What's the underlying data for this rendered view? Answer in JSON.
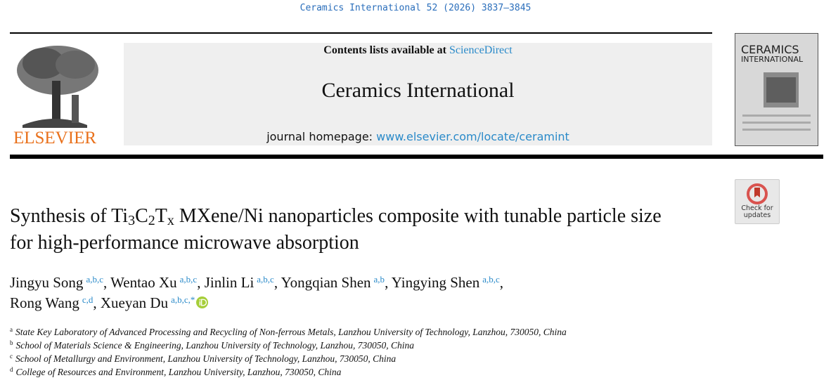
{
  "citation": "Ceramics International 52 (2026) 3837–3845",
  "header": {
    "contents_prefix": "Contents lists available at",
    "contents_link": "ScienceDirect",
    "journal": "Ceramics International",
    "homepage_prefix": "journal homepage:",
    "homepage_link": "www.elsevier.com/locate/ceramint",
    "publisher": "ELSEVIER",
    "cover_title": [
      "CERAMICS",
      "INTERNATIONAL"
    ]
  },
  "check_updates": [
    "Check for",
    "updates"
  ],
  "title": [
    {
      "text": "Synthesis of Ti"
    },
    {
      "text": "3",
      "sub": true
    },
    {
      "text": "C"
    },
    {
      "text": "2",
      "sub": true
    },
    {
      "text": "T"
    },
    {
      "text": "x",
      "sub": true
    },
    {
      "text": " MXene/Ni nanoparticles composite with tunable particle size for high-performance microwave absorption"
    }
  ],
  "authors_separator": ",",
  "authors": [
    {
      "name": "Jingyu Song",
      "affiliations": "a,b,c"
    },
    {
      "name": "Wentao Xu",
      "affiliations": "a,b,c"
    },
    {
      "name": "Jinlin Li",
      "affiliations": "a,b,c"
    },
    {
      "name": "Yongqian Shen",
      "affiliations": "a,b"
    },
    {
      "name": "Yingying Shen",
      "affiliations": "a,b,c"
    },
    {
      "name": "Rong Wang",
      "affiliations": "c,d"
    },
    {
      "name": "Xueyan Du",
      "affiliations": "a,b,c,",
      "corresponding": "*",
      "orcid": true
    }
  ],
  "affiliations": [
    {
      "label": "a",
      "text": "State Key Laboratory of Advanced Processing and Recycling of Non-ferrous Metals, Lanzhou University of Technology, Lanzhou, 730050, China"
    },
    {
      "label": "b",
      "text": "School of Materials Science & Engineering, Lanzhou University of Technology, Lanzhou, 730050, China"
    },
    {
      "label": "c",
      "text": "School of Metallurgy and Environment, Lanzhou University of Technology, Lanzhou, 730050, China"
    },
    {
      "label": "d",
      "text": "College of Resources and Environment, Lanzhou University, Lanzhou, 730050, China"
    }
  ]
}
